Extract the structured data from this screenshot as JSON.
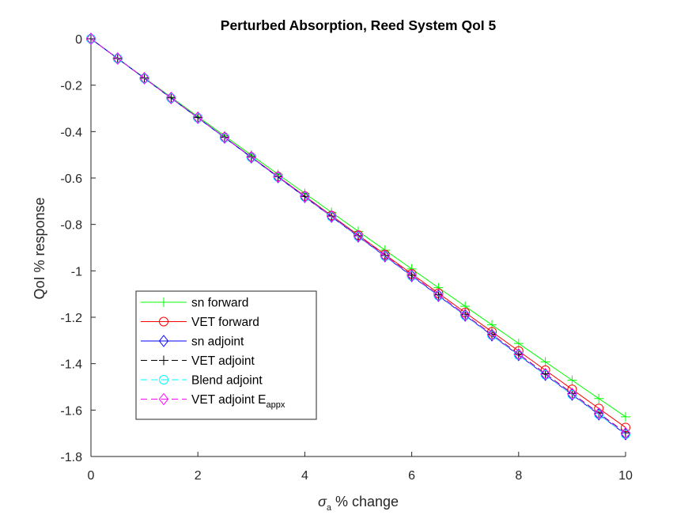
{
  "chart_data": {
    "type": "line",
    "title": "Perturbed Absorption, Reed System QoI 5",
    "xlabel": {
      "symbol": "σ",
      "subscript": "a",
      "text": " % change"
    },
    "ylabel": "QoI % response",
    "xlim": [
      0,
      10
    ],
    "ylim": [
      -1.8,
      0
    ],
    "xticks": [
      0,
      2,
      4,
      6,
      8,
      10
    ],
    "xtick_labels": [
      "0",
      "2",
      "4",
      "6",
      "8",
      "10"
    ],
    "yticks": [
      0,
      -0.2,
      -0.4,
      -0.6,
      -0.8,
      -1,
      -1.2,
      -1.4,
      -1.6,
      -1.8
    ],
    "ytick_labels": [
      "0",
      "-0.2",
      "-0.4",
      "-0.6",
      "-0.8",
      "-1",
      "-1.2",
      "-1.4",
      "-1.6",
      "-1.8"
    ],
    "grid": false,
    "legend_position": "lower-left",
    "x": [
      0,
      0.5,
      1,
      1.5,
      2,
      2.5,
      3,
      3.5,
      4,
      4.5,
      5,
      5.5,
      6,
      6.5,
      7,
      7.5,
      8,
      8.5,
      9,
      9.5,
      10
    ],
    "series": [
      {
        "name": "sn forward",
        "color": "#00ff00",
        "dash": "solid",
        "marker": "plus",
        "values": [
          0,
          -0.0843,
          -0.1683,
          -0.252,
          -0.3354,
          -0.4185,
          -0.5013,
          -0.5838,
          -0.666,
          -0.7479,
          -0.8295,
          -0.9108,
          -0.9918,
          -1.0725,
          -1.1529,
          -1.233,
          -1.3128,
          -1.3923,
          -1.4715,
          -1.5504,
          -1.629
        ]
      },
      {
        "name": "VET forward",
        "color": "#ff0000",
        "dash": "solid",
        "marker": "circle",
        "values": [
          0,
          -0.0853,
          -0.1705,
          -0.2555,
          -0.3403,
          -0.425,
          -0.5095,
          -0.5938,
          -0.678,
          -0.762,
          -0.8458,
          -0.9295,
          -1.013,
          -1.0963,
          -1.1795,
          -1.2625,
          -1.3453,
          -1.428,
          -1.5105,
          -1.5928,
          -1.675
        ]
      },
      {
        "name": "sn adjoint",
        "color": "#0000ff",
        "dash": "solid",
        "marker": "diamond",
        "values": [
          0,
          -0.0852,
          -0.1704,
          -0.2556,
          -0.3408,
          -0.426,
          -0.5112,
          -0.5964,
          -0.6816,
          -0.7668,
          -0.852,
          -0.9372,
          -1.0224,
          -1.1076,
          -1.1928,
          -1.278,
          -1.3632,
          -1.4484,
          -1.5336,
          -1.6188,
          -1.704
        ]
      },
      {
        "name": "VET adjoint",
        "color": "#000000",
        "dash": "dashed",
        "marker": "plus",
        "values": [
          0,
          -0.0849,
          -0.1698,
          -0.2547,
          -0.3396,
          -0.4245,
          -0.5094,
          -0.5943,
          -0.6792,
          -0.7641,
          -0.849,
          -0.9339,
          -1.0188,
          -1.1037,
          -1.1886,
          -1.2735,
          -1.3584,
          -1.4433,
          -1.5282,
          -1.6131,
          -1.698
        ]
      },
      {
        "name": "Blend adjoint",
        "color": "#00ffff",
        "dash": "dashed",
        "marker": "circle",
        "values": [
          0,
          -0.0852,
          -0.1704,
          -0.2556,
          -0.3408,
          -0.426,
          -0.5112,
          -0.5964,
          -0.6816,
          -0.7668,
          -0.852,
          -0.9372,
          -1.0224,
          -1.1076,
          -1.1928,
          -1.278,
          -1.3632,
          -1.4484,
          -1.5336,
          -1.6188,
          -1.704
        ]
      },
      {
        "name": "VET adjoint E",
        "name_subscript": "appx",
        "color": "#ff00ff",
        "dash": "dashed",
        "marker": "diamond",
        "values": [
          0,
          -0.085,
          -0.17,
          -0.255,
          -0.34,
          -0.425,
          -0.51,
          -0.595,
          -0.68,
          -0.765,
          -0.85,
          -0.935,
          -1.02,
          -1.105,
          -1.19,
          -1.275,
          -1.36,
          -1.445,
          -1.53,
          -1.615,
          -1.7
        ]
      }
    ]
  }
}
